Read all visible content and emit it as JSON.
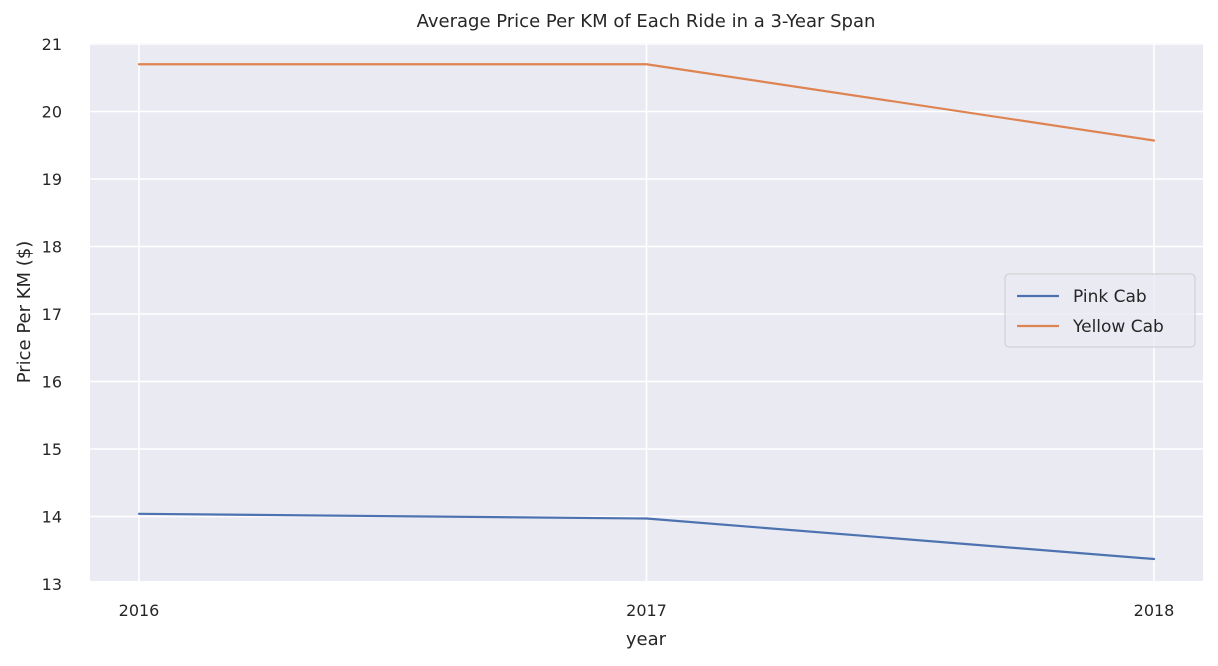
{
  "chart_data": {
    "type": "line",
    "title": "Average Price Per KM of Each Ride in a 3-Year Span",
    "xlabel": "year",
    "ylabel": "Price Per KM ($)",
    "categories": [
      "2016",
      "2017",
      "2018"
    ],
    "x": [
      2016,
      2017,
      2018
    ],
    "ylim": [
      13,
      21
    ],
    "yticks": [
      "13",
      "14",
      "15",
      "16",
      "17",
      "18",
      "19",
      "20",
      "21"
    ],
    "grid": true,
    "legend_position": "right",
    "series": [
      {
        "name": "Pink Cab",
        "color": "#4c72b0",
        "values": [
          14.04,
          13.97,
          13.37
        ]
      },
      {
        "name": "Yellow Cab",
        "color": "#dd8452",
        "values": [
          20.7,
          20.7,
          19.57
        ]
      }
    ]
  }
}
